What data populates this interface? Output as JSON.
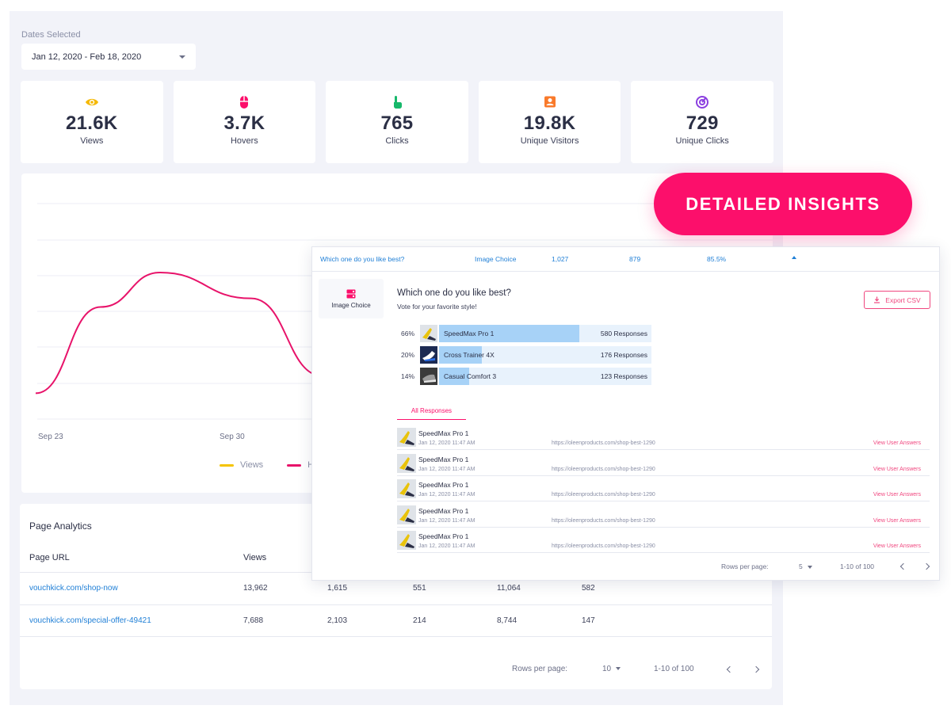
{
  "filters": {
    "dates_label": "Dates Selected",
    "date_range": "Jan 12, 2020 - Feb 18, 2020"
  },
  "stats": [
    {
      "icon": "eye-icon",
      "color": "#f5b800",
      "value": "21.6K",
      "label": "Views"
    },
    {
      "icon": "mouse-icon",
      "color": "#fc0f6b",
      "value": "3.7K",
      "label": "Hovers"
    },
    {
      "icon": "pointer-hand-icon",
      "color": "#17b86b",
      "value": "765",
      "label": "Clicks"
    },
    {
      "icon": "user-badge-icon",
      "color": "#f97a2b",
      "value": "19.8K",
      "label": "Unique Visitors"
    },
    {
      "icon": "target-icon",
      "color": "#8b3fe0",
      "value": "729",
      "label": "Unique Clicks"
    }
  ],
  "chart_data": {
    "type": "line",
    "x_ticks": [
      "Sep 23",
      "Sep 30"
    ],
    "grid": true,
    "legend": [
      "Views",
      "Ho"
    ],
    "legend_placement": "bottom-center",
    "series": [
      {
        "name": "Ho",
        "color": "#e8136a",
        "values": [
          0.12,
          0.52,
          0.68,
          0.56,
          0.2
        ]
      }
    ]
  },
  "page_analytics": {
    "title": "Page Analytics",
    "headers": [
      "Page URL",
      "Views"
    ],
    "rows": [
      {
        "url": "vouchkick.com/shop-now",
        "c1": "13,962",
        "c2": "1,615",
        "c3": "551",
        "c4": "11,064",
        "c5": "582"
      },
      {
        "url": "vouchkick.com/special-offer-49421",
        "c1": "7,688",
        "c2": "2,103",
        "c3": "214",
        "c4": "8,744",
        "c5": "147"
      }
    ],
    "rows_per_page_label": "Rows per page:",
    "rows_per_page": "10",
    "range": "1-10 of 100"
  },
  "badge": "DETAILED INSIGHTS",
  "insights": {
    "summary": {
      "question": "Which one do you like best?",
      "type": "Image Choice",
      "v1": "1,027",
      "v2": "879",
      "v3": "85.5%"
    },
    "type_label": "Image Choice",
    "title": "Which one do you like best?",
    "subtitle": "Vote for your favorite style!",
    "export_label": "Export CSV",
    "options": [
      {
        "pct": "66%",
        "fraction": 0.66,
        "name": "SpeedMax Pro 1",
        "responses": "580 Responses"
      },
      {
        "pct": "20%",
        "fraction": 0.2,
        "name": "Cross Trainer 4X",
        "responses": "176 Responses"
      },
      {
        "pct": "14%",
        "fraction": 0.14,
        "name": "Casual Comfort 3",
        "responses": "123 Responses"
      }
    ],
    "tab_label": "All Responses",
    "responses": [
      {
        "name": "SpeedMax Pro 1",
        "date": "Jan 12, 2020 11:47 AM",
        "url": "https://oleenproducts.com/shop-best-1290",
        "link": "View User Answers"
      },
      {
        "name": "SpeedMax Pro 1",
        "date": "Jan 12, 2020 11:47 AM",
        "url": "https://oleenproducts.com/shop-best-1290",
        "link": "View User Answers"
      },
      {
        "name": "SpeedMax Pro 1",
        "date": "Jan 12, 2020 11:47 AM",
        "url": "https://oleenproducts.com/shop-best-1290",
        "link": "View User Answers"
      },
      {
        "name": "SpeedMax Pro 1",
        "date": "Jan 12, 2020 11:47 AM",
        "url": "https://oleenproducts.com/shop-best-1290",
        "link": "View User Answers"
      },
      {
        "name": "SpeedMax Pro 1",
        "date": "Jan 12, 2020 11:47 AM",
        "url": "https://oleenproducts.com/shop-best-1290",
        "link": "View User Answers"
      }
    ],
    "rows_per_page_label": "Rows per page:",
    "rows_per_page": "5",
    "range": "1-10 of 100"
  }
}
